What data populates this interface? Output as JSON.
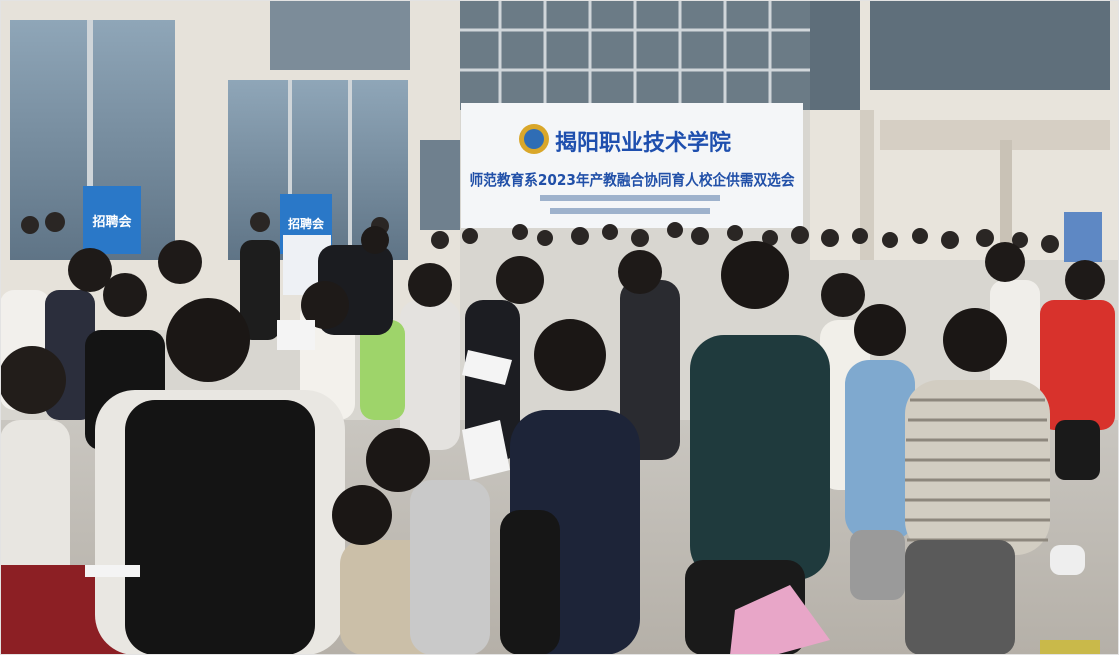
{
  "photo": {
    "banner": {
      "school_name": "揭阳职业技术学院",
      "event_title": "师范教育系2023年产教融合协同育人校企供需双选会",
      "colors": {
        "background": "#f4f6f8",
        "title": "#1e4fae",
        "emblem": "#d9a72a"
      }
    },
    "posters": [
      {
        "text": "招聘会"
      },
      {
        "text": "招聘会"
      }
    ]
  }
}
